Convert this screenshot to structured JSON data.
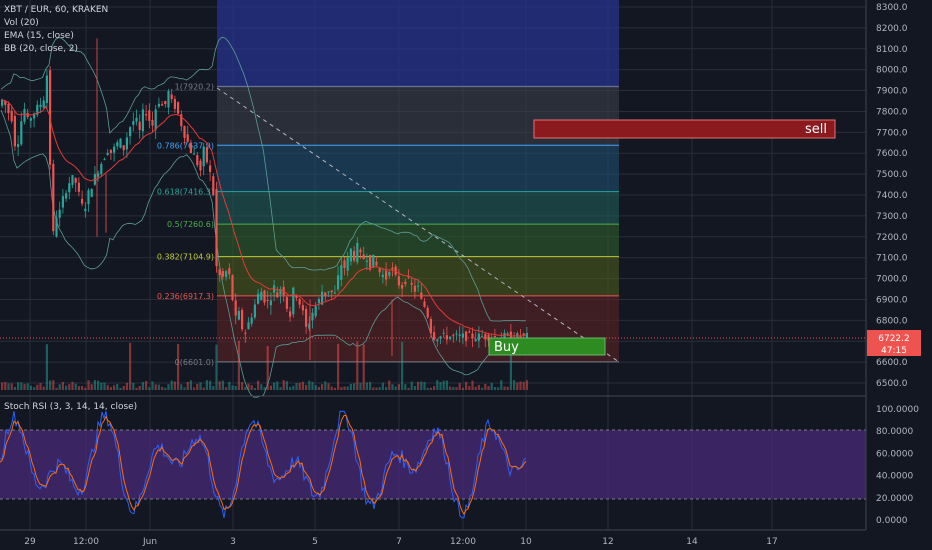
{
  "header": {
    "symbol": "XBT / EUR, 60, KRAKEN",
    "vol": "Vol (20)",
    "ema": "EMA (15, close)",
    "bb": "BB (20, close, 2)"
  },
  "stoch_label": "Stoch RSI (3, 3, 14, 14, close)",
  "colors": {
    "background": "#131722",
    "up": "#26a69a",
    "down": "#ef5350",
    "sell_zone": "#8b1a1f",
    "buy_zone": "#2e8b22",
    "stoch_band": "#4a2a78",
    "k_line": "#2962ff",
    "d_line": "#ff6d00"
  },
  "price_axis": {
    "labels": [
      "8300.0",
      "8200.0",
      "8100.0",
      "8000.0",
      "7900.0",
      "7800.0",
      "7700.0",
      "7600.0",
      "7500.0",
      "7400.0",
      "7300.0",
      "7200.0",
      "7100.0",
      "7000.0",
      "6900.0",
      "6800.0",
      "6700.0",
      "6600.0",
      "6500.0"
    ],
    "last_price": "6722.2",
    "countdown": "47:15"
  },
  "stoch_axis": {
    "labels": [
      "100.0000",
      "80.0000",
      "60.0000",
      "40.0000",
      "20.0000",
      "0.0000"
    ]
  },
  "time_axis": {
    "labels": [
      "29",
      "12:00",
      "Jun",
      "3",
      "5",
      "7",
      "12:00",
      "10",
      "12",
      "14",
      "17"
    ]
  },
  "fib_labels": [
    "1(7920.2)",
    "0.786(7637.9)",
    "0.618(7416.3)",
    "0.5(7260.6)",
    "0.382(7104.9)",
    "0.236(6917.3)",
    "0(6601.0)"
  ],
  "annotations": {
    "sell": "sell",
    "buy": "Buy"
  },
  "chart_data": {
    "type": "candlestick",
    "title": "XBT / EUR, 60, KRAKEN",
    "ylim": [
      6450,
      8330
    ],
    "stoch_ylim": [
      0,
      100
    ],
    "x_ticks": [
      "29",
      "12:00",
      "Jun",
      "3",
      "5",
      "7",
      "12:00",
      "10",
      "12",
      "14",
      "17"
    ],
    "fibonacci": [
      {
        "ratio": 1,
        "price": 7920.2
      },
      {
        "ratio": 0.786,
        "price": 7637.9
      },
      {
        "ratio": 0.618,
        "price": 7416.3
      },
      {
        "ratio": 0.5,
        "price": 7260.6
      },
      {
        "ratio": 0.382,
        "price": 7104.9
      },
      {
        "ratio": 0.236,
        "price": 6917.3
      },
      {
        "ratio": 0,
        "price": 6601.0
      }
    ],
    "zones": [
      {
        "label": "sell",
        "from": 7680,
        "to": 7780
      },
      {
        "label": "Buy",
        "from": 6620,
        "to": 6710
      }
    ],
    "price_path": [
      [
        0,
        7820
      ],
      [
        5,
        7860
      ],
      [
        10,
        7800
      ],
      [
        15,
        7760
      ],
      [
        18,
        7590
      ],
      [
        22,
        7720
      ],
      [
        26,
        7820
      ],
      [
        30,
        7750
      ],
      [
        35,
        7790
      ],
      [
        40,
        7820
      ],
      [
        45,
        7850
      ],
      [
        48,
        7900
      ],
      [
        50,
        8050
      ],
      [
        51,
        7780
      ],
      [
        53,
        7400
      ],
      [
        55,
        7200
      ],
      [
        58,
        7300
      ],
      [
        62,
        7320
      ],
      [
        66,
        7400
      ],
      [
        70,
        7450
      ],
      [
        74,
        7480
      ],
      [
        78,
        7460
      ],
      [
        82,
        7380
      ],
      [
        86,
        7320
      ],
      [
        90,
        7400
      ],
      [
        94,
        7450
      ],
      [
        98,
        7500
      ],
      [
        102,
        7540
      ],
      [
        106,
        7580
      ],
      [
        110,
        7620
      ],
      [
        114,
        7600
      ],
      [
        118,
        7640
      ],
      [
        122,
        7660
      ],
      [
        126,
        7620
      ],
      [
        130,
        7700
      ],
      [
        134,
        7750
      ],
      [
        138,
        7760
      ],
      [
        142,
        7700
      ],
      [
        146,
        7820
      ],
      [
        150,
        7780
      ],
      [
        154,
        7720
      ],
      [
        158,
        7820
      ],
      [
        162,
        7860
      ],
      [
        166,
        7800
      ],
      [
        170,
        7900
      ],
      [
        174,
        7840
      ],
      [
        178,
        7820
      ],
      [
        182,
        7760
      ],
      [
        186,
        7700
      ],
      [
        190,
        7650
      ],
      [
        194,
        7600
      ],
      [
        198,
        7580
      ],
      [
        202,
        7500
      ],
      [
        206,
        7620
      ],
      [
        210,
        7540
      ],
      [
        214,
        7470
      ],
      [
        216,
        7380
      ],
      [
        218,
        7100
      ],
      [
        220,
        6950
      ],
      [
        222,
        7020
      ],
      [
        226,
        7000
      ],
      [
        230,
        7060
      ],
      [
        234,
        6920
      ],
      [
        238,
        6800
      ],
      [
        242,
        6840
      ],
      [
        246,
        6700
      ],
      [
        248,
        6760
      ],
      [
        252,
        6800
      ],
      [
        256,
        6860
      ],
      [
        260,
        6920
      ],
      [
        264,
        6940
      ],
      [
        268,
        6880
      ],
      [
        272,
        6900
      ],
      [
        276,
        6960
      ],
      [
        280,
        6910
      ],
      [
        284,
        6980
      ],
      [
        288,
        6880
      ],
      [
        292,
        6820
      ],
      [
        296,
        6960
      ],
      [
        300,
        6900
      ],
      [
        304,
        6860
      ],
      [
        308,
        6760
      ],
      [
        312,
        6800
      ],
      [
        316,
        6860
      ],
      [
        320,
        6880
      ],
      [
        324,
        6940
      ],
      [
        328,
        6920
      ],
      [
        332,
        6960
      ],
      [
        336,
        6900
      ],
      [
        340,
        7000
      ],
      [
        344,
        7080
      ],
      [
        348,
        7040
      ],
      [
        352,
        7150
      ],
      [
        356,
        7100
      ],
      [
        360,
        7160
      ],
      [
        364,
        7080
      ],
      [
        368,
        7120
      ],
      [
        372,
        7060
      ],
      [
        376,
        7100
      ],
      [
        380,
        7040
      ],
      [
        384,
        7020
      ],
      [
        388,
        7000
      ],
      [
        392,
        7060
      ],
      [
        396,
        7020
      ],
      [
        400,
        6980
      ],
      [
        404,
        6960
      ],
      [
        408,
        7000
      ],
      [
        412,
        6980
      ],
      [
        416,
        6940
      ],
      [
        420,
        6960
      ],
      [
        424,
        6880
      ],
      [
        428,
        6860
      ],
      [
        432,
        6780
      ],
      [
        434,
        6722.2
      ]
    ]
  }
}
